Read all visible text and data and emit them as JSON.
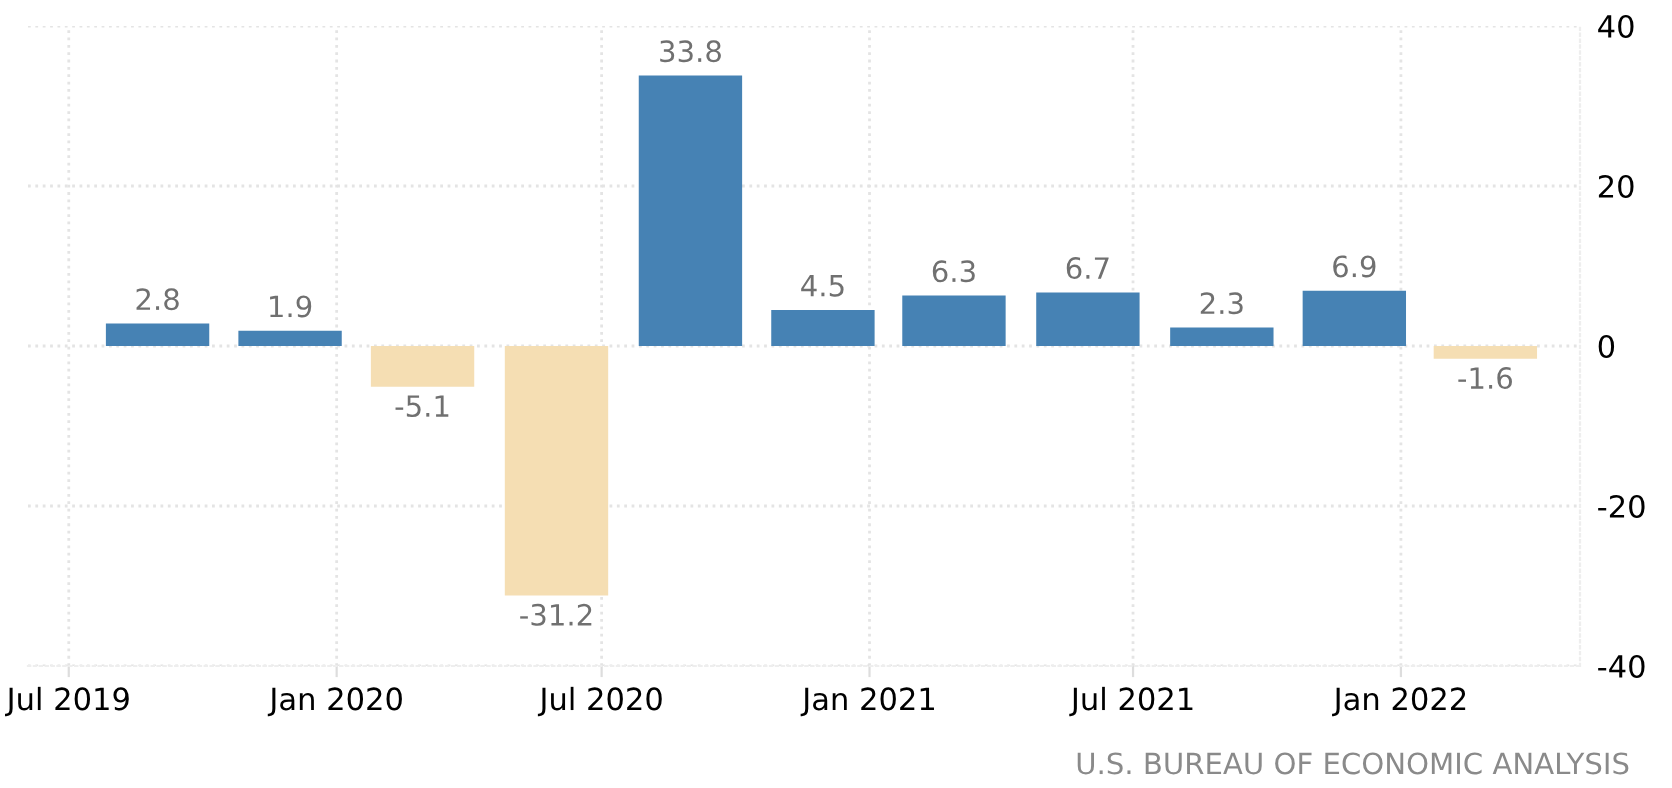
{
  "chart_data": {
    "type": "bar",
    "x": [
      "2019-08-31",
      "2019-11-30",
      "2020-02-29",
      "2020-05-31",
      "2020-08-31",
      "2020-11-30",
      "2021-02-28",
      "2021-05-31",
      "2021-08-31",
      "2021-11-30",
      "2022-02-28"
    ],
    "values": [
      2.8,
      1.9,
      -5.1,
      -31.2,
      33.8,
      4.5,
      6.3,
      6.7,
      2.3,
      6.9,
      -1.6
    ],
    "colors": [
      "#4682b4",
      "#4682b4",
      "#f5deb3",
      "#f5deb3",
      "#4682b4",
      "#4682b4",
      "#4682b4",
      "#4682b4",
      "#4682b4",
      "#4682b4",
      "#f5deb3"
    ],
    "data_labels": true,
    "xlim": [
      "2019-06-03",
      "2022-05-04"
    ],
    "xticks": [
      {
        "value": "2019-07-01",
        "label": "Jul 2019"
      },
      {
        "value": "2020-01-01",
        "label": "Jan 2020"
      },
      {
        "value": "2020-07-01",
        "label": "Jul 2020"
      },
      {
        "value": "2021-01-01",
        "label": "Jan 2021"
      },
      {
        "value": "2021-07-01",
        "label": "Jul 2021"
      },
      {
        "value": "2022-01-01",
        "label": "Jan 2022"
      }
    ],
    "ylim": [
      -40,
      40
    ],
    "yticks": [
      -40,
      -20,
      0,
      20,
      40
    ],
    "grid": true,
    "annotations": [
      "U.S. BUREAU OF ECONOMIC ANALYSIS"
    ]
  }
}
